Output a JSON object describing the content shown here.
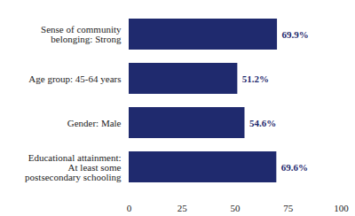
{
  "chart_data": {
    "type": "bar",
    "orientation": "horizontal",
    "categories": [
      "Sense of community belonging: Strong",
      "Age group: 45-64 years",
      "Gender: Male",
      "Educational attainment: At least some postsecondary schooling"
    ],
    "values": [
      69.9,
      51.2,
      54.6,
      69.6
    ],
    "value_labels": [
      "69.9%",
      "51.2%",
      "54.6%",
      "69.6%"
    ],
    "color": "#1f2a6e",
    "xlim": [
      0,
      100
    ],
    "xticks": [
      0,
      25,
      50,
      75,
      100
    ],
    "grid": false,
    "data_labels": true
  }
}
